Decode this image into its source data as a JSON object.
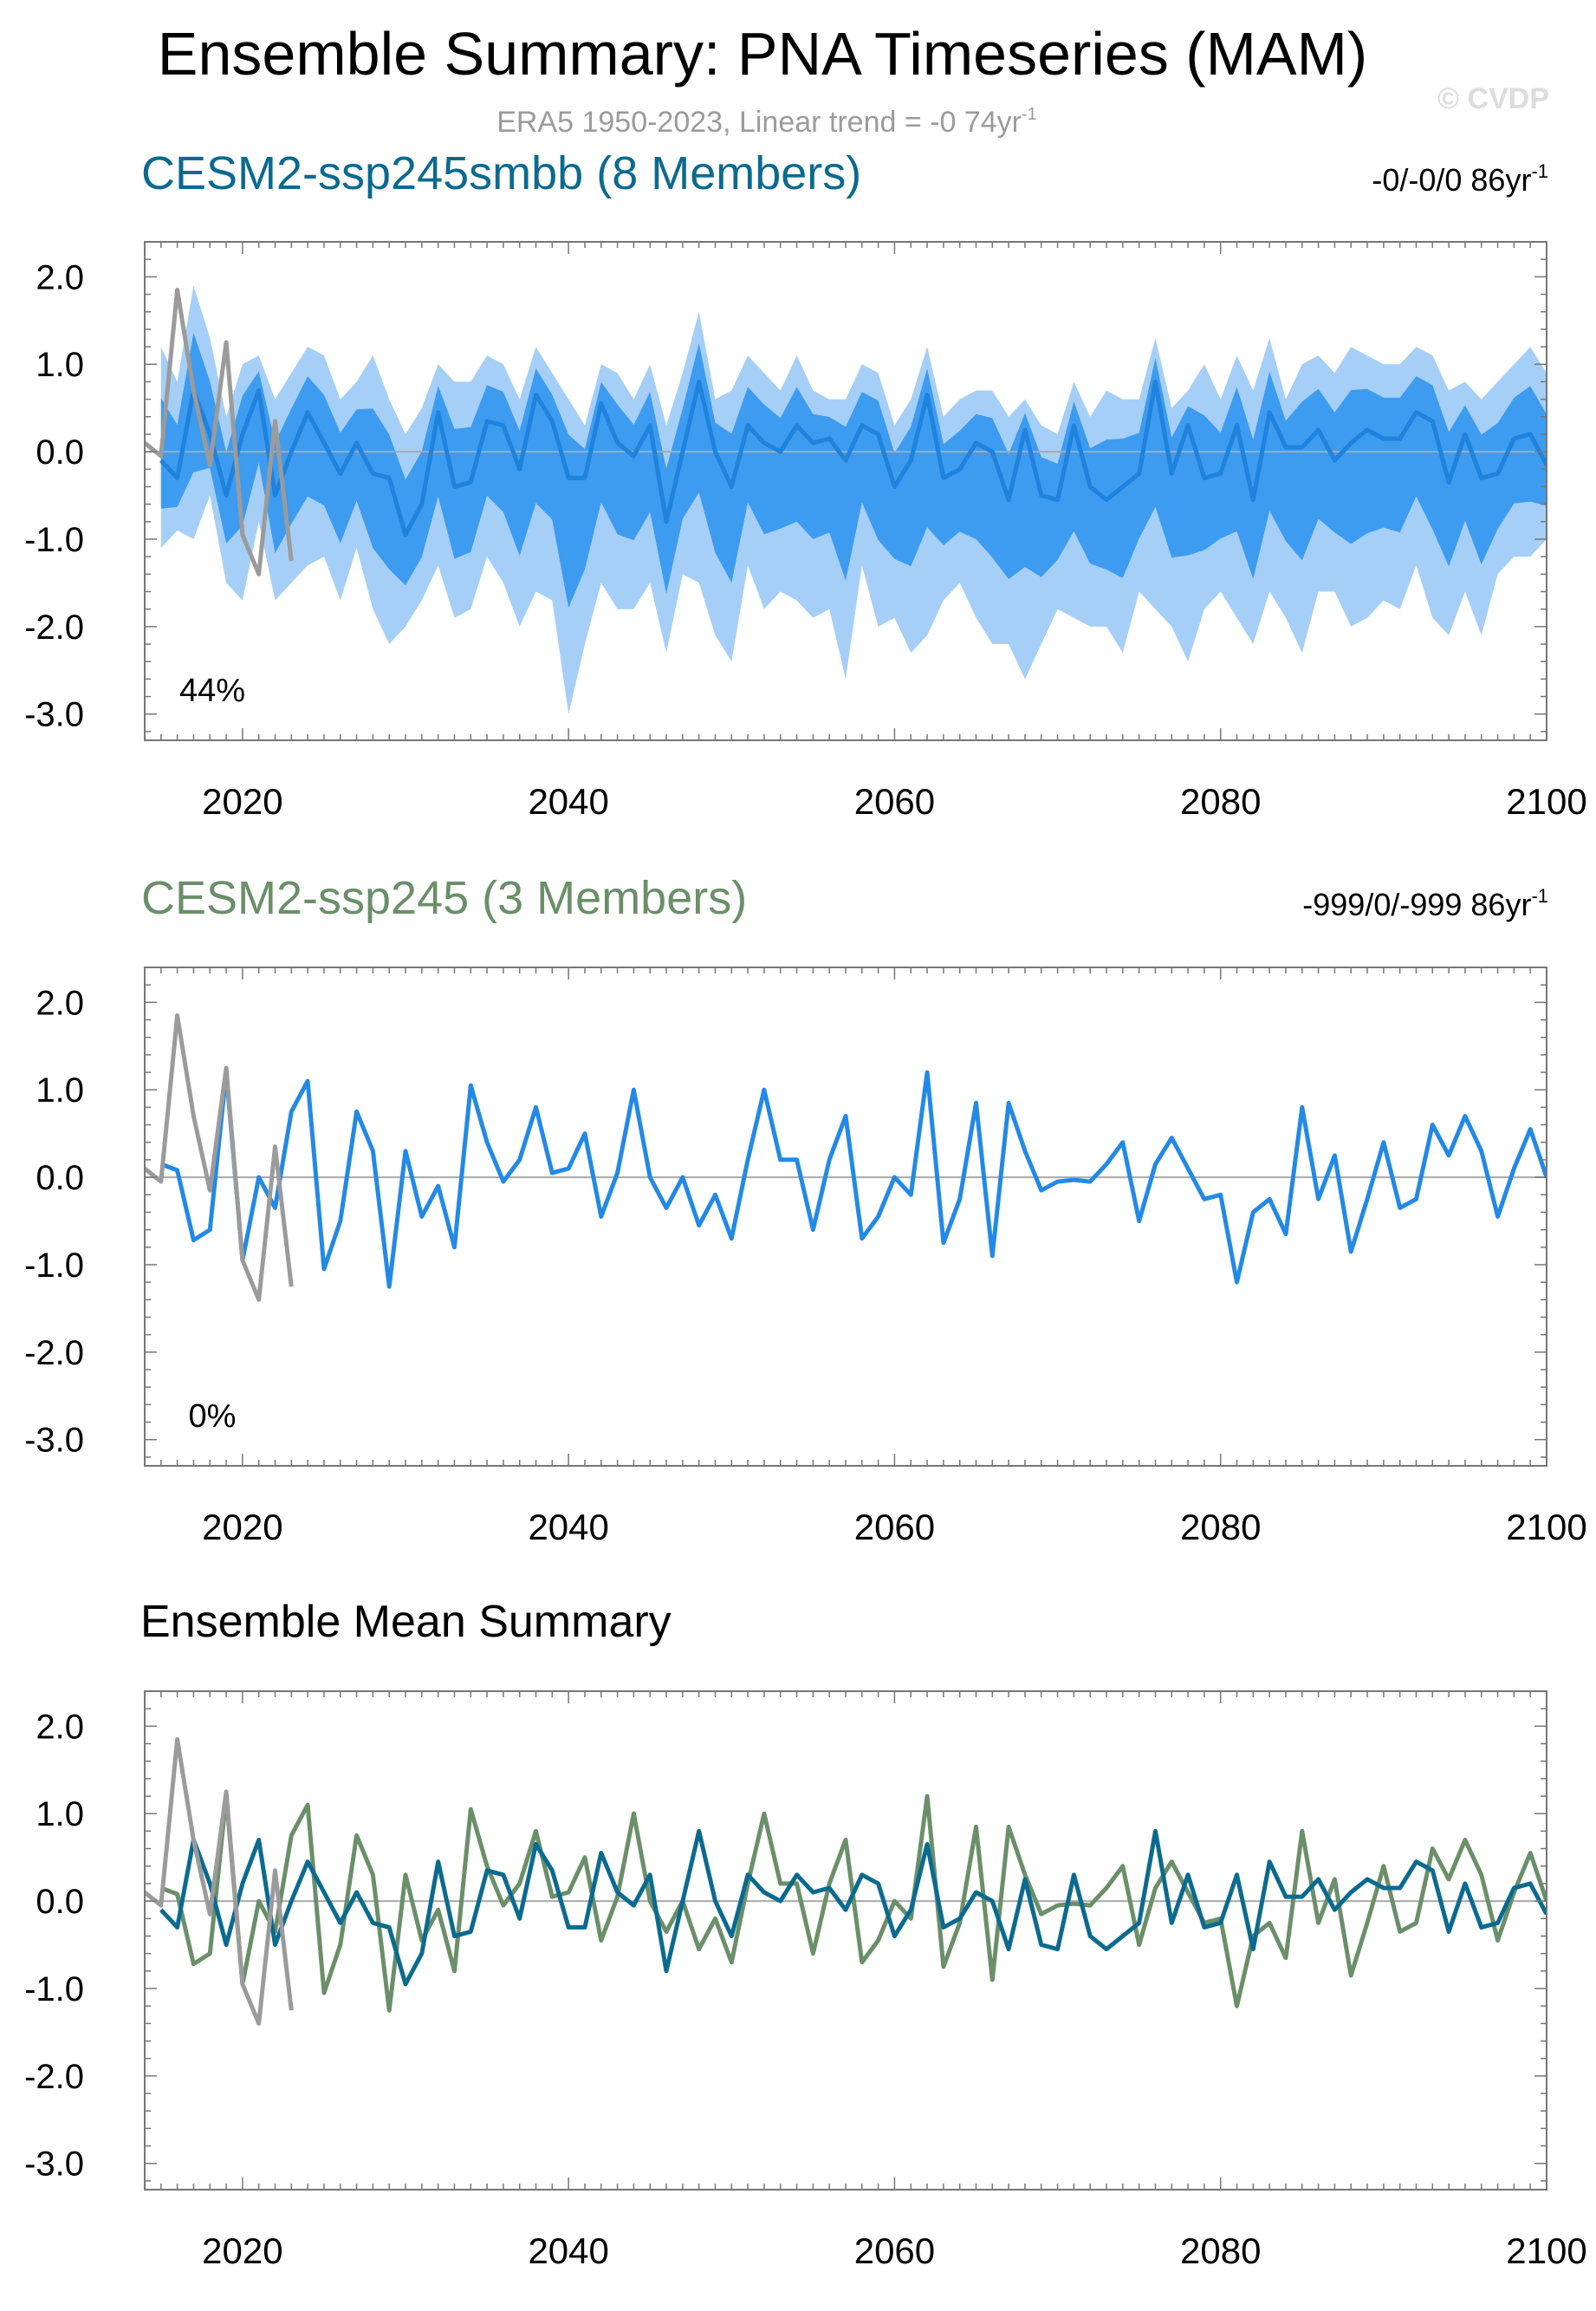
{
  "figure": {
    "title": "Ensemble Summary: PNA Timeseries (MAM)",
    "subtitle": "ERA5 1950-2023, Linear trend = -0 74yr",
    "subtitle_sup": "-1",
    "watermark": "© CVDP"
  },
  "colors": {
    "obs": "#9b9b9b",
    "light_band": "#a6cff7",
    "dark_band": "#3d9bf0",
    "mean_line": "#1f82dc",
    "ssp245_line": "#2389e6",
    "mean1": "#0b6a8f",
    "mean2": "#6a8f69",
    "title1": "#0b6a8f",
    "title2": "#6a8f69",
    "axis": "#000000",
    "zero": "#aaaaaa",
    "watermark": "#dddddd"
  },
  "chart_data": [
    {
      "type": "area",
      "title": "CESM2-ssp245smbb (8 Members)",
      "trend_label": "-0/-0/0 86yr",
      "trend_sup": "-1",
      "percent_label": "44%",
      "xlim": [
        2014,
        2100
      ],
      "ylim": [
        -3.3,
        2.4
      ],
      "xticks": [
        2020,
        2040,
        2060,
        2080,
        2100
      ],
      "yticks": [
        "2.0",
        "1.0",
        "0.0",
        "-1.0",
        "-2.0",
        "-3.0"
      ],
      "x_start": 2015,
      "series": [
        {
          "name": "ensemble mean",
          "values": [
            -0.1,
            -0.3,
            0.7,
            0.2,
            -0.5,
            0.2,
            0.7,
            -0.5,
            0.0,
            0.45,
            0.1,
            -0.25,
            0.1,
            -0.25,
            -0.3,
            -0.95,
            -0.6,
            0.45,
            -0.4,
            -0.35,
            0.35,
            0.3,
            -0.2,
            0.65,
            0.35,
            -0.3,
            -0.3,
            0.55,
            0.1,
            -0.05,
            0.3,
            -0.8,
            0.0,
            0.8,
            0.0,
            -0.4,
            0.3,
            0.1,
            0.0,
            0.3,
            0.1,
            0.15,
            -0.1,
            0.3,
            0.2,
            -0.4,
            -0.1,
            0.65,
            -0.3,
            -0.2,
            0.1,
            0.0,
            -0.55,
            0.25,
            -0.5,
            -0.55,
            0.3,
            -0.4,
            -0.55,
            -0.4,
            -0.25,
            0.8,
            -0.25,
            0.3,
            -0.3,
            -0.25,
            0.3,
            -0.55,
            0.45,
            0.05,
            0.05,
            0.25,
            -0.1,
            0.1,
            0.25,
            0.15,
            0.15,
            0.45,
            0.35,
            -0.35,
            0.2,
            -0.3,
            -0.25,
            0.15,
            0.2,
            -0.15
          ]
        },
        {
          "name": "ensemble min",
          "values": [
            -1.1,
            -0.9,
            -1.0,
            -0.5,
            -1.5,
            -1.7,
            -0.8,
            -1.7,
            -1.5,
            -1.3,
            -1.2,
            -1.7,
            -1.1,
            -1.8,
            -2.2,
            -2.0,
            -1.7,
            -1.3,
            -1.9,
            -1.8,
            -1.2,
            -1.5,
            -2.0,
            -1.6,
            -1.7,
            -3.0,
            -2.2,
            -1.5,
            -1.8,
            -1.8,
            -1.5,
            -2.3,
            -1.4,
            -1.5,
            -2.1,
            -2.4,
            -1.3,
            -1.8,
            -1.6,
            -1.7,
            -1.9,
            -1.8,
            -2.6,
            -1.3,
            -2.0,
            -1.9,
            -2.3,
            -2.1,
            -1.7,
            -1.5,
            -1.9,
            -2.2,
            -2.2,
            -2.6,
            -2.2,
            -1.8,
            -1.9,
            -2.0,
            -2.0,
            -2.3,
            -1.6,
            -1.8,
            -2.0,
            -2.4,
            -1.8,
            -1.6,
            -1.9,
            -2.2,
            -1.6,
            -1.9,
            -2.3,
            -1.6,
            -1.6,
            -2.0,
            -1.9,
            -1.7,
            -1.8,
            -1.3,
            -1.9,
            -2.1,
            -1.6,
            -2.1,
            -1.4,
            -1.2,
            -1.2,
            -1.0
          ]
        },
        {
          "name": "ensemble max",
          "values": [
            1.2,
            0.8,
            1.9,
            1.3,
            0.4,
            1.0,
            1.1,
            0.6,
            0.9,
            1.2,
            1.1,
            0.6,
            0.8,
            1.1,
            0.6,
            0.2,
            0.5,
            1.0,
            0.8,
            0.8,
            1.1,
            1.0,
            0.6,
            1.2,
            0.9,
            0.6,
            0.3,
            1.0,
            0.9,
            0.6,
            1.0,
            0.3,
            0.9,
            1.6,
            0.6,
            0.7,
            1.1,
            0.9,
            0.7,
            1.1,
            0.7,
            0.6,
            0.6,
            1.0,
            0.9,
            0.3,
            0.6,
            1.2,
            0.4,
            0.6,
            0.7,
            0.7,
            0.4,
            0.6,
            0.3,
            0.2,
            0.8,
            0.4,
            0.7,
            0.6,
            0.6,
            1.3,
            0.5,
            0.7,
            1.0,
            0.6,
            1.1,
            0.7,
            1.3,
            0.6,
            1.0,
            1.1,
            0.9,
            1.2,
            1.1,
            1.0,
            1.0,
            1.2,
            1.1,
            0.7,
            0.8,
            0.6,
            0.8,
            1.0,
            1.2,
            0.9
          ]
        },
        {
          "name": "ERA5",
          "x": [
            2014,
            2015,
            2016,
            2017,
            2018,
            2019,
            2020,
            2021,
            2022,
            2023
          ],
          "values": [
            0.1,
            -0.05,
            1.85,
            0.7,
            -0.15,
            1.25,
            -0.95,
            -1.4,
            0.35,
            -1.25
          ]
        }
      ]
    },
    {
      "type": "line",
      "title": "CESM2-ssp245 (3 Members)",
      "trend_label": "-999/0/-999 86yr",
      "trend_sup": "-1",
      "percent_label": "0%",
      "xlim": [
        2014,
        2100
      ],
      "ylim": [
        -3.3,
        2.4
      ],
      "xticks": [
        2020,
        2040,
        2060,
        2080,
        2100
      ],
      "yticks": [
        "2.0",
        "1.0",
        "0.0",
        "-1.0",
        "-2.0",
        "-3.0"
      ],
      "x_start": 2015,
      "series": [
        {
          "name": "ensemble mean",
          "values": [
            0.15,
            0.08,
            -0.72,
            -0.6,
            1.2,
            -0.95,
            0.0,
            -0.35,
            0.75,
            1.1,
            -1.05,
            -0.5,
            0.75,
            0.3,
            -1.25,
            0.3,
            -0.45,
            -0.1,
            -0.8,
            1.05,
            0.4,
            -0.05,
            0.2,
            0.8,
            0.05,
            0.1,
            0.5,
            -0.45,
            0.05,
            1.0,
            0.0,
            -0.35,
            0.0,
            -0.55,
            -0.2,
            -0.7,
            0.2,
            1.0,
            0.2,
            0.2,
            -0.6,
            0.2,
            0.7,
            -0.7,
            -0.45,
            0.0,
            -0.2,
            1.2,
            -0.75,
            -0.25,
            0.85,
            -0.9,
            0.85,
            0.3,
            -0.15,
            -0.05,
            -0.03,
            -0.05,
            0.15,
            0.4,
            -0.5,
            0.15,
            0.45,
            0.1,
            -0.25,
            -0.2,
            -1.2,
            -0.4,
            -0.25,
            -0.65,
            0.8,
            -0.25,
            0.25,
            -0.85,
            -0.25,
            0.4,
            -0.35,
            -0.25,
            0.6,
            0.25,
            0.7,
            0.3,
            -0.45,
            0.1,
            0.55,
            0.0
          ]
        },
        {
          "name": "ERA5",
          "x": [
            2014,
            2015,
            2016,
            2017,
            2018,
            2019,
            2020,
            2021,
            2022,
            2023
          ],
          "values": [
            0.1,
            -0.05,
            1.85,
            0.7,
            -0.15,
            1.25,
            -0.95,
            -1.4,
            0.35,
            -1.25
          ]
        }
      ]
    },
    {
      "type": "line",
      "title": "Ensemble Mean Summary",
      "xlim": [
        2014,
        2100
      ],
      "ylim": [
        -3.3,
        2.4
      ],
      "xticks": [
        2020,
        2040,
        2060,
        2080,
        2100
      ],
      "yticks": [
        "2.0",
        "1.0",
        "0.0",
        "-1.0",
        "-2.0",
        "-3.0"
      ],
      "x_start": 2015,
      "series": [
        {
          "name": "CESM2-ssp245smbb",
          "values": [
            -0.1,
            -0.3,
            0.7,
            0.2,
            -0.5,
            0.2,
            0.7,
            -0.5,
            0.0,
            0.45,
            0.1,
            -0.25,
            0.1,
            -0.25,
            -0.3,
            -0.95,
            -0.6,
            0.45,
            -0.4,
            -0.35,
            0.35,
            0.3,
            -0.2,
            0.65,
            0.35,
            -0.3,
            -0.3,
            0.55,
            0.1,
            -0.05,
            0.3,
            -0.8,
            0.0,
            0.8,
            0.0,
            -0.4,
            0.3,
            0.1,
            0.0,
            0.3,
            0.1,
            0.15,
            -0.1,
            0.3,
            0.2,
            -0.4,
            -0.1,
            0.65,
            -0.3,
            -0.2,
            0.1,
            0.0,
            -0.55,
            0.25,
            -0.5,
            -0.55,
            0.3,
            -0.4,
            -0.55,
            -0.4,
            -0.25,
            0.8,
            -0.25,
            0.3,
            -0.3,
            -0.25,
            0.3,
            -0.55,
            0.45,
            0.05,
            0.05,
            0.25,
            -0.1,
            0.1,
            0.25,
            0.15,
            0.15,
            0.45,
            0.35,
            -0.35,
            0.2,
            -0.3,
            -0.25,
            0.15,
            0.2,
            -0.15
          ]
        },
        {
          "name": "CESM2-ssp245",
          "values": [
            0.15,
            0.08,
            -0.72,
            -0.6,
            1.2,
            -0.95,
            0.0,
            -0.35,
            0.75,
            1.1,
            -1.05,
            -0.5,
            0.75,
            0.3,
            -1.25,
            0.3,
            -0.45,
            -0.1,
            -0.8,
            1.05,
            0.4,
            -0.05,
            0.2,
            0.8,
            0.05,
            0.1,
            0.5,
            -0.45,
            0.05,
            1.0,
            0.0,
            -0.35,
            0.0,
            -0.55,
            -0.2,
            -0.7,
            0.2,
            1.0,
            0.2,
            0.2,
            -0.6,
            0.2,
            0.7,
            -0.7,
            -0.45,
            0.0,
            -0.2,
            1.2,
            -0.75,
            -0.25,
            0.85,
            -0.9,
            0.85,
            0.3,
            -0.15,
            -0.05,
            -0.03,
            -0.05,
            0.15,
            0.4,
            -0.5,
            0.15,
            0.45,
            0.1,
            -0.25,
            -0.2,
            -1.2,
            -0.4,
            -0.25,
            -0.65,
            0.8,
            -0.25,
            0.25,
            -0.85,
            -0.25,
            0.4,
            -0.35,
            -0.25,
            0.6,
            0.25,
            0.7,
            0.3,
            -0.45,
            0.1,
            0.55,
            0.0
          ]
        },
        {
          "name": "ERA5",
          "x": [
            2014,
            2015,
            2016,
            2017,
            2018,
            2019,
            2020,
            2021,
            2022,
            2023
          ],
          "values": [
            0.1,
            -0.05,
            1.85,
            0.7,
            -0.15,
            1.25,
            -0.95,
            -1.4,
            0.35,
            -1.25
          ]
        }
      ]
    }
  ]
}
